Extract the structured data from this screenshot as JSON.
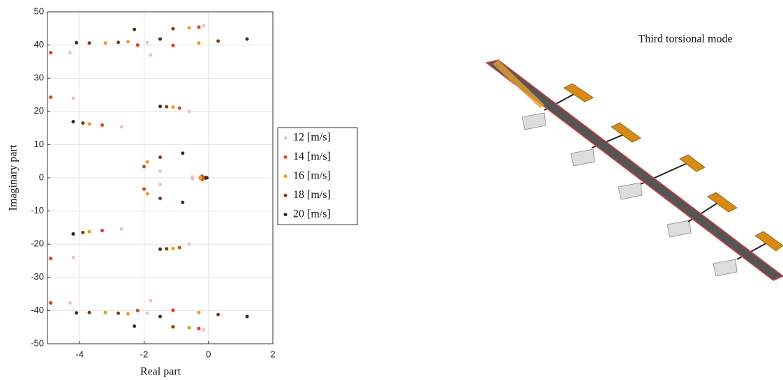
{
  "chart_data": {
    "type": "scatter",
    "xlabel": "Real part",
    "ylabel": "Imaginary part",
    "annotation": "Third torsional mode",
    "xlim": [
      -5,
      2
    ],
    "ylim": [
      -50,
      50
    ],
    "xticks": [
      -4,
      -2,
      0,
      2
    ],
    "yticks": [
      -50,
      -40,
      -30,
      -20,
      -10,
      0,
      10,
      20,
      30,
      40,
      50
    ],
    "grid": true,
    "series": [
      {
        "name": "12 [m/s]",
        "color": "#f7bfc4",
        "x": [
          -4.3,
          -1.8,
          -1.9,
          -0.15,
          -4.2,
          -0.6,
          -2.7,
          -1.5,
          -0.5,
          -4.3,
          -1.8,
          -1.9,
          -0.15,
          -4.2,
          -0.6,
          -2.7,
          -1.5,
          -0.5
        ],
        "y": [
          37.7,
          37,
          40.8,
          45.8,
          24,
          20,
          15.4,
          2,
          0.3,
          -37.7,
          -37,
          -40.8,
          -45.8,
          -24,
          -20,
          -15.4,
          -2,
          -0.3
        ]
      },
      {
        "name": "14 [m/s]",
        "color": "#ef3a16",
        "x": [
          -4.9,
          -2.2,
          -1.1,
          -0.3,
          -4.9,
          -0.9,
          -3.3,
          -2,
          -0.2,
          -4.9,
          -2.2,
          -1.1,
          -0.3,
          -4.9,
          -0.9,
          -3.3,
          -2,
          -0.2
        ],
        "y": [
          37.7,
          40,
          39.9,
          45.4,
          24.3,
          21,
          15.9,
          3.4,
          0.5,
          -37.7,
          -40,
          -39.9,
          -45.4,
          -24.3,
          -21,
          -15.9,
          -3.4,
          -0.5
        ]
      },
      {
        "name": "16 [m/s]",
        "color": "#f59b0c",
        "x": [
          -3.2,
          -2.5,
          -0.3,
          -0.6,
          -3.7,
          -1.1,
          -1.9,
          -0.25,
          -3.2,
          -2.5,
          -0.3,
          -0.6,
          -3.7,
          -1.1,
          -1.9,
          -0.25
        ],
        "y": [
          40.6,
          41,
          40.6,
          45.2,
          16.2,
          21.3,
          4.8,
          0.2,
          -40.6,
          -41,
          -40.6,
          -45.2,
          -16.2,
          -21.3,
          -4.8,
          -0.2
        ]
      },
      {
        "name": "18 [m/s]",
        "color": "#8a3510",
        "x": [
          -3.7,
          -2.8,
          -1.1,
          0.3,
          -3.9,
          -1.3,
          -1.5,
          -0.1,
          -3.7,
          -2.8,
          -1.1,
          0.3,
          -3.9,
          -1.3,
          -1.5,
          -0.1
        ],
        "y": [
          40.6,
          40.8,
          44.9,
          41.2,
          16.5,
          21.4,
          6.2,
          0.1,
          -40.6,
          -40.8,
          -44.9,
          -41.2,
          -16.5,
          -21.4,
          -6.2,
          -0.1
        ]
      },
      {
        "name": "20 [m/s]",
        "color": "#2c3510",
        "x": [
          -4.1,
          -2.3,
          -1.5,
          1.2,
          -4.2,
          -1.5,
          -0.8,
          -0.05,
          -4.1,
          -2.3,
          -1.5,
          1.2,
          -4.2,
          -1.5,
          -0.8,
          -0.05
        ],
        "y": [
          40.7,
          44.7,
          41.8,
          41.8,
          16.9,
          21.5,
          7.4,
          0,
          -40.7,
          -44.7,
          -41.8,
          -41.8,
          -16.9,
          -21.5,
          -7.4,
          0
        ]
      }
    ]
  }
}
